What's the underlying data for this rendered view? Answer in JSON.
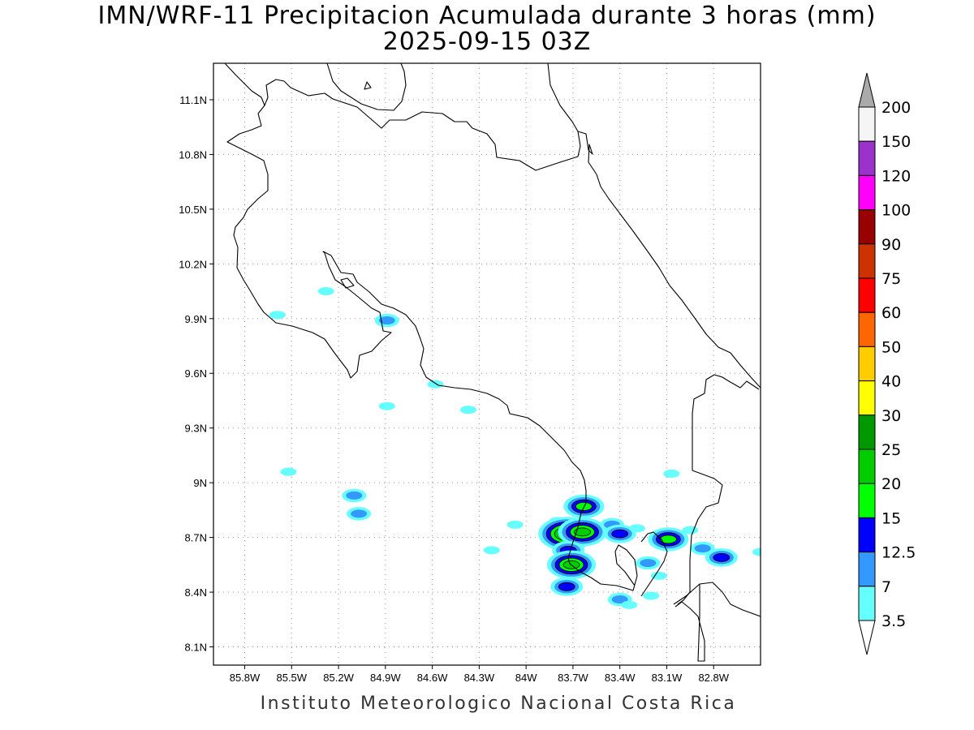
{
  "title": {
    "line1": "IMN/WRF-11 Precipitacion Acumulada durante 3 horas (mm)",
    "line2": "2025-09-15 03Z"
  },
  "credit": "Instituto Meteorologico Nacional Costa Rica",
  "map": {
    "lon_range": [
      -86.0,
      -82.5
    ],
    "lat_range": [
      8.0,
      11.3
    ],
    "x_ticks": [
      {
        "value": -85.8,
        "label": "85.8W"
      },
      {
        "value": -85.5,
        "label": "85.5W"
      },
      {
        "value": -85.2,
        "label": "85.2W"
      },
      {
        "value": -84.9,
        "label": "84.9W"
      },
      {
        "value": -84.6,
        "label": "84.6W"
      },
      {
        "value": -84.3,
        "label": "84.3W"
      },
      {
        "value": -84.0,
        "label": "84W"
      },
      {
        "value": -83.7,
        "label": "83.7W"
      },
      {
        "value": -83.4,
        "label": "83.4W"
      },
      {
        "value": -83.1,
        "label": "83.1W"
      },
      {
        "value": -82.8,
        "label": "82.8W"
      }
    ],
    "y_ticks": [
      {
        "value": 11.1,
        "label": "11.1N"
      },
      {
        "value": 10.8,
        "label": "10.8N"
      },
      {
        "value": 10.5,
        "label": "10.5N"
      },
      {
        "value": 10.2,
        "label": "10.2N"
      },
      {
        "value": 9.9,
        "label": "9.9N"
      },
      {
        "value": 9.6,
        "label": "9.6N"
      },
      {
        "value": 9.3,
        "label": "9.3N"
      },
      {
        "value": 9.0,
        "label": "9N"
      },
      {
        "value": 8.7,
        "label": "8.7N"
      },
      {
        "value": 8.4,
        "label": "8.4N"
      },
      {
        "value": 8.1,
        "label": "8.1N"
      }
    ],
    "grid": "dotted"
  },
  "colorbar": {
    "unit": "mm",
    "levels": [
      "3.5",
      "7",
      "12.5",
      "15",
      "20",
      "25",
      "30",
      "40",
      "50",
      "60",
      "75",
      "90",
      "100",
      "120",
      "150",
      "200"
    ],
    "colors": [
      "#66ffff",
      "#3399ff",
      "#0000ff",
      "#00ff00",
      "#00cc00",
      "#009900",
      "#ffff00",
      "#ffcc00",
      "#ff6600",
      "#ff0000",
      "#cc3300",
      "#990000",
      "#ff00ff",
      "#9933cc",
      "#f5f5f5"
    ],
    "top_arrow_color": "#aaaaaa",
    "bottom_arrow_color": "#ffffff"
  },
  "precip_cells": [
    {
      "lon": -85.59,
      "lat": 9.92,
      "level": "3.5"
    },
    {
      "lon": -85.28,
      "lat": 10.05,
      "level": "3.5"
    },
    {
      "lon": -84.89,
      "lat": 9.89,
      "level": "7"
    },
    {
      "lon": -84.89,
      "lat": 9.42,
      "level": "3.5"
    },
    {
      "lon": -84.58,
      "lat": 9.54,
      "level": "3.5"
    },
    {
      "lon": -84.37,
      "lat": 9.4,
      "level": "3.5"
    },
    {
      "lon": -85.52,
      "lat": 9.06,
      "level": "3.5"
    },
    {
      "lon": -85.1,
      "lat": 8.93,
      "level": "7"
    },
    {
      "lon": -85.07,
      "lat": 8.83,
      "level": "7"
    },
    {
      "lon": -84.07,
      "lat": 8.77,
      "level": "3.5"
    },
    {
      "lon": -84.22,
      "lat": 8.63,
      "level": "3.5"
    },
    {
      "lon": -83.8,
      "lat": 8.79,
      "level": "3.5"
    },
    {
      "lon": -83.74,
      "lat": 8.72,
      "level": "25"
    },
    {
      "lon": -83.63,
      "lat": 8.87,
      "level": "15"
    },
    {
      "lon": -83.64,
      "lat": 8.73,
      "level": "20"
    },
    {
      "lon": -83.73,
      "lat": 8.63,
      "level": "12.5"
    },
    {
      "lon": -83.71,
      "lat": 8.55,
      "level": "20"
    },
    {
      "lon": -83.74,
      "lat": 8.43,
      "level": "12.5"
    },
    {
      "lon": -83.45,
      "lat": 8.77,
      "level": "7"
    },
    {
      "lon": -83.4,
      "lat": 8.72,
      "level": "12.5"
    },
    {
      "lon": -83.29,
      "lat": 8.75,
      "level": "3.5"
    },
    {
      "lon": -83.09,
      "lat": 8.69,
      "level": "15"
    },
    {
      "lon": -82.95,
      "lat": 8.74,
      "level": "3.5"
    },
    {
      "lon": -83.22,
      "lat": 8.56,
      "level": "7"
    },
    {
      "lon": -83.15,
      "lat": 8.49,
      "level": "3.5"
    },
    {
      "lon": -83.4,
      "lat": 8.36,
      "level": "7"
    },
    {
      "lon": -83.34,
      "lat": 8.33,
      "level": "3.5"
    },
    {
      "lon": -83.2,
      "lat": 8.38,
      "level": "3.5"
    },
    {
      "lon": -83.07,
      "lat": 9.05,
      "level": "3.5"
    },
    {
      "lon": -82.87,
      "lat": 8.64,
      "level": "7"
    },
    {
      "lon": -82.75,
      "lat": 8.59,
      "level": "12.5"
    },
    {
      "lon": -82.5,
      "lat": 8.62,
      "level": "3.5"
    }
  ]
}
